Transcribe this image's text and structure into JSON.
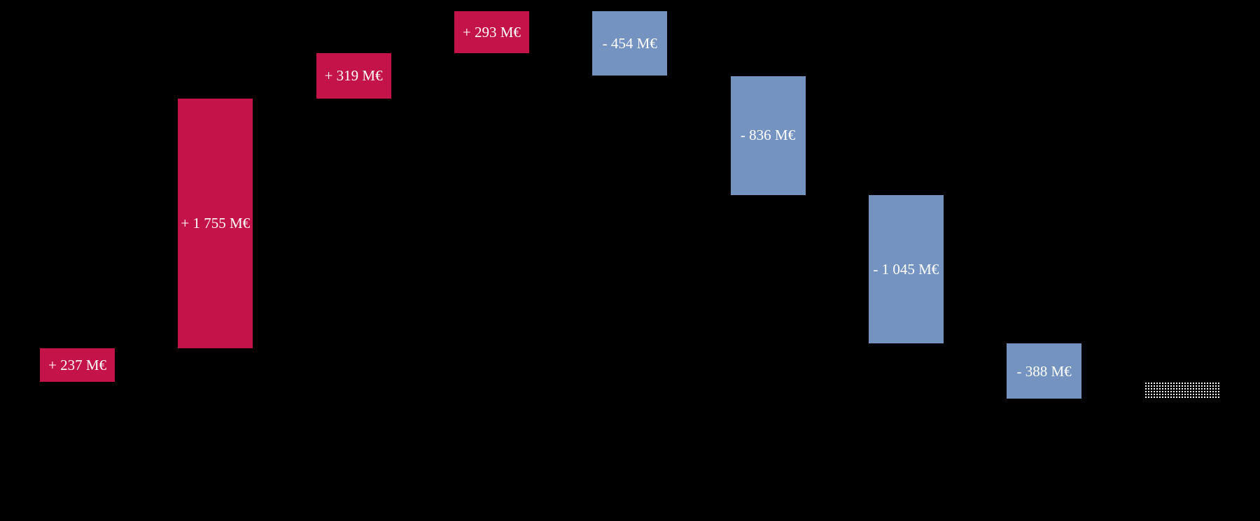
{
  "page": {
    "background_color": "#000000"
  },
  "chart_data": {
    "type": "waterfall",
    "title": "",
    "unit": "M€",
    "value_label_color": "#ffffff",
    "colors": {
      "increase": "#c41349",
      "decrease": "#7493c1",
      "total_fill": "white-dotted-pattern"
    },
    "baseline": 0,
    "steps": [
      {
        "label": "+ 237 M€",
        "value": 237,
        "kind": "increase"
      },
      {
        "label": "+ 1 755 M€",
        "value": 1755,
        "kind": "increase"
      },
      {
        "label": "+ 319 M€",
        "value": 319,
        "kind": "increase"
      },
      {
        "label": "+ 293 M€",
        "value": 293,
        "kind": "increase"
      },
      {
        "label": "- 454 M€",
        "value": -454,
        "kind": "decrease"
      },
      {
        "label": "- 836 M€",
        "value": -836,
        "kind": "decrease"
      },
      {
        "label": "- 1 045 M€",
        "value": -1045,
        "kind": "decrease"
      },
      {
        "label": "- 388 M€",
        "value": -388,
        "kind": "decrease"
      },
      {
        "label": "",
        "value": -119,
        "kind": "total"
      }
    ],
    "cumulative": [
      237,
      1992,
      2311,
      2604,
      2150,
      1314,
      269,
      -119
    ],
    "ylim": [
      -119,
      2604
    ],
    "grid": false,
    "legend": false,
    "axis_labels_visible": false
  }
}
